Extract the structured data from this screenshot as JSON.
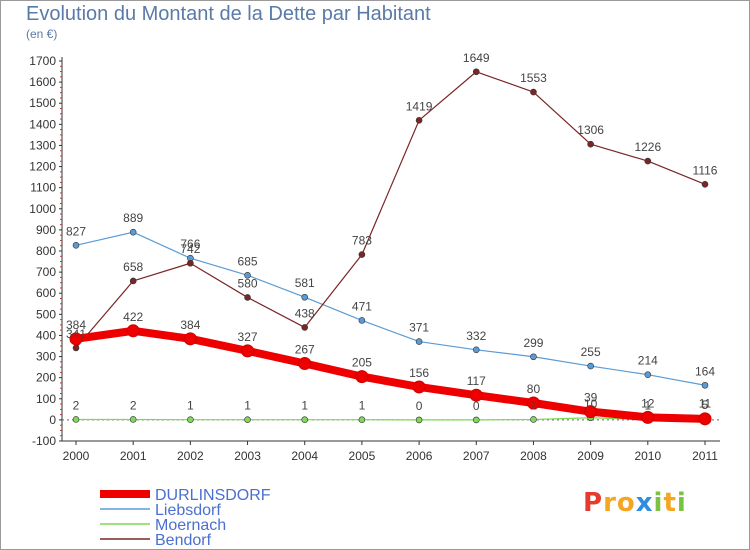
{
  "title": "Evolution du Montant de la Dette par Habitant",
  "unit": "(en €)",
  "logo": {
    "text": "Proxiti",
    "letters": [
      "P",
      "r",
      "o",
      "x",
      "i",
      "t",
      "i"
    ],
    "colors": [
      "#e8392f",
      "#f4a623",
      "#f4a623",
      "#2f8de4",
      "#7cc242",
      "#f4a623",
      "#7cc242"
    ]
  },
  "chart_data": {
    "type": "line",
    "x": [
      "2000",
      "2001",
      "2002",
      "2003",
      "2004",
      "2005",
      "2006",
      "2007",
      "2008",
      "2009",
      "2010",
      "2011"
    ],
    "ylim": [
      -100,
      1700
    ],
    "yticks": [
      -100,
      0,
      100,
      200,
      300,
      400,
      500,
      600,
      700,
      800,
      900,
      1000,
      1100,
      1200,
      1300,
      1400,
      1500,
      1600,
      1700
    ],
    "grid": false,
    "legend": "bottom-left",
    "series": [
      {
        "name": "DURLINSDORF",
        "color": "#ee0000",
        "values": [
          384,
          422,
          384,
          327,
          267,
          205,
          156,
          117,
          80,
          39,
          12,
          5
        ]
      },
      {
        "name": "Liebsdorf",
        "color": "#5b9bd5",
        "values": [
          827,
          889,
          766,
          685,
          581,
          471,
          371,
          332,
          299,
          255,
          214,
          164
        ]
      },
      {
        "name": "Moernach",
        "color": "#7ed957",
        "values": [
          2,
          2,
          1,
          1,
          1,
          1,
          0,
          0,
          2,
          10,
          1,
          11
        ]
      },
      {
        "name": "Bendorf",
        "color": "#7a2626",
        "values": [
          341,
          658,
          742,
          580,
          438,
          783,
          1419,
          1649,
          1553,
          1306,
          1226,
          1116
        ]
      }
    ]
  }
}
